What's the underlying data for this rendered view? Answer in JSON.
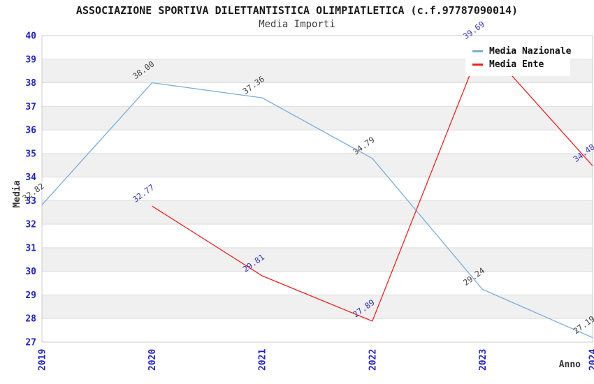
{
  "chart_data": {
    "type": "line",
    "title": "ASSOCIAZIONE SPORTIVA DILETTANTISTICA OLIMPIATLETICA (c.f.97787090014)",
    "subtitle": "Media Importi",
    "xlabel": "Anno",
    "ylabel": "Media",
    "x_ticks": [
      2019,
      2020,
      2021,
      2022,
      2023,
      2024
    ],
    "xlim": [
      2019,
      2024
    ],
    "ylim": [
      27,
      40
    ],
    "ytick_step": 1,
    "grid": true,
    "legend_position": "top-right",
    "point_label_decimals": 2,
    "series": [
      {
        "name": "Media Nazionale",
        "color": "#7aaddd",
        "label_color": "#444444",
        "x": [
          2019,
          2020,
          2021,
          2022,
          2023,
          2024
        ],
        "values": [
          32.82,
          38.0,
          37.36,
          34.79,
          29.24,
          27.19
        ]
      },
      {
        "name": "Media Ente",
        "color": "#ee2222",
        "label_color": "#3333bb",
        "x": [
          2020,
          2021,
          2022,
          2023,
          2024
        ],
        "values": [
          32.77,
          29.81,
          27.89,
          39.69,
          34.48
        ]
      }
    ],
    "colors": {
      "tick_label": "#2222cc",
      "axis_label": "#333333",
      "grid_line": "#dddddd",
      "band_fill": "#f0f0f0",
      "plot_border": "#cccccc",
      "background": "#ffffff"
    }
  }
}
